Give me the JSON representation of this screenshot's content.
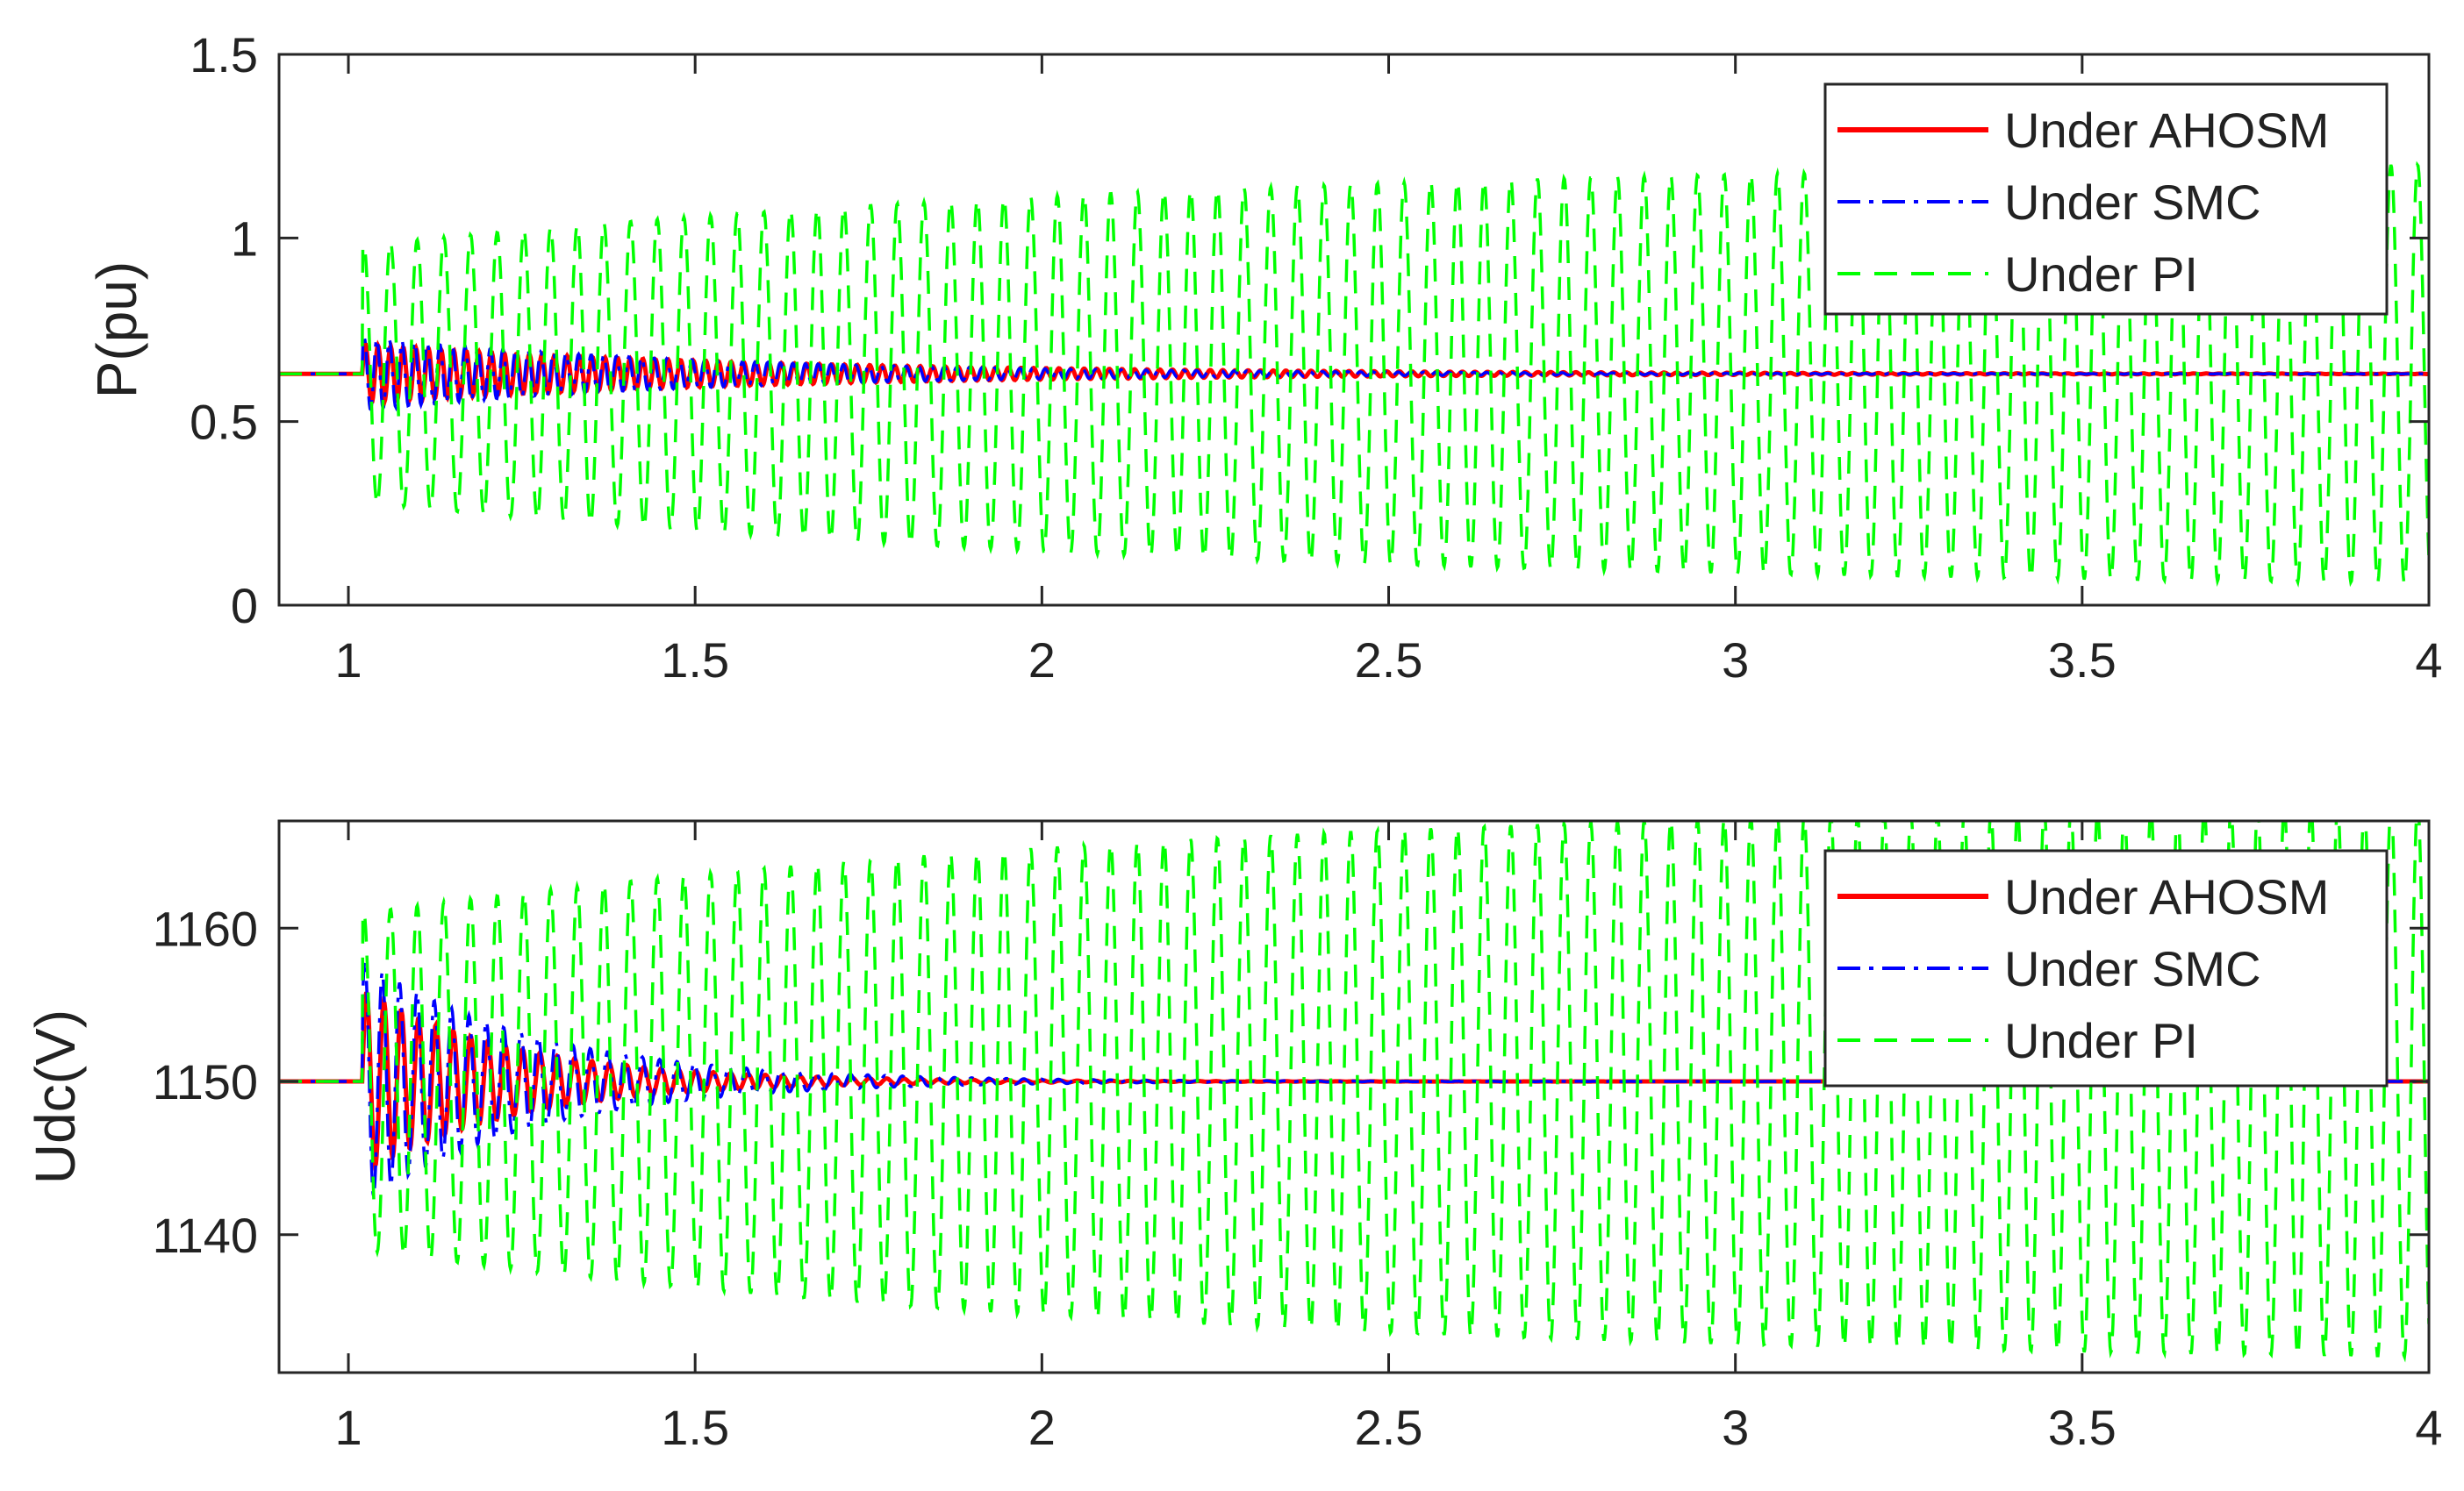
{
  "chart_data": [
    {
      "type": "line",
      "ylabel": "P(pu)",
      "xlabel": "",
      "xlim": [
        0.9,
        4
      ],
      "ylim": [
        0,
        1.5
      ],
      "x_ticks": [
        "1",
        "1.5",
        "2",
        "2.5",
        "3",
        "3.5",
        "4"
      ],
      "y_ticks": [
        "0",
        "0.5",
        "1",
        "1.5"
      ],
      "legend_position": "top-right",
      "grid": false,
      "series": [
        {
          "name": "Under AHOSM",
          "color": "#ff0000",
          "style": "solid",
          "steady": 0.63,
          "disturb_t": 1.02,
          "amp0": 0.08,
          "decay": 0.6,
          "freq": 55,
          "amp_end": 0
        },
        {
          "name": "Under SMC",
          "color": "#0000ff",
          "style": "dash-dot",
          "steady": 0.63,
          "disturb_t": 1.02,
          "amp0": 0.1,
          "decay": 0.5,
          "freq": 55,
          "amp_end": 0
        },
        {
          "name": "Under PI",
          "color": "#00ff00",
          "style": "dashed",
          "steady": 0.63,
          "disturb_t": 1.02,
          "amp0": 0.35,
          "decay": 0,
          "freq": 26,
          "amp_end": 0.57
        }
      ]
    },
    {
      "type": "line",
      "ylabel": "Udc(V)",
      "xlabel": "",
      "xlim": [
        0.9,
        4
      ],
      "ylim": [
        1131,
        1167
      ],
      "x_ticks": [
        "1",
        "1.5",
        "2",
        "2.5",
        "3",
        "3.5",
        "4"
      ],
      "y_ticks": [
        "1140",
        "1150",
        "1160"
      ],
      "legend_position": "top-right",
      "grid": false,
      "series": [
        {
          "name": "Under AHOSM",
          "color": "#ff0000",
          "style": "solid",
          "steady": 1150,
          "disturb_t": 1.02,
          "amp0": 6,
          "decay": 0.22,
          "freq": 40,
          "amp_end": 0
        },
        {
          "name": "Under SMC",
          "color": "#0000ff",
          "style": "dash-dot",
          "steady": 1150,
          "disturb_t": 1.02,
          "amp0": 8,
          "decay": 0.25,
          "freq": 40,
          "amp_end": 0
        },
        {
          "name": "Under PI",
          "color": "#00ff00",
          "style": "dashed",
          "steady": 1150,
          "disturb_t": 1.02,
          "amp0": 11,
          "decay": 0,
          "freq": 26,
          "amp_end": 18
        }
      ]
    }
  ]
}
